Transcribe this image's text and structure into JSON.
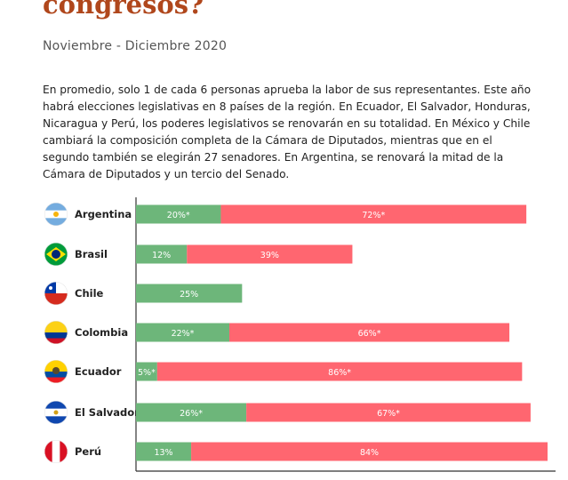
{
  "header": {
    "title": "congresos?",
    "subtitle": "Noviembre - Diciembre 2020",
    "paragraph": "En promedio, solo 1 de cada 6 personas aprueba la labor de sus representantes.  Este año habrá elecciones legislativas en 8 países de la región. En Ecuador, El Salvador, Honduras, Nicaragua y Perú, los poderes legislativos se renovarán en su totalidad. En México y Chile cambiará la composición completa de la Cámara de Diputados, mientras que en el segundo también se elegirán 27 senadores. En Argentina, se renovará la mitad de la Cámara de Diputados y un tercio del Senado."
  },
  "chart_data": {
    "type": "bar",
    "orientation": "horizontal",
    "stacked": true,
    "categories": [
      "Argentina",
      "Brasil",
      "Chile",
      "Colombia",
      "Ecuador",
      "El Salvador",
      "Perú"
    ],
    "series": [
      {
        "values": [
          20,
          12,
          25,
          22,
          5,
          26,
          13
        ],
        "labels": [
          "20%*",
          "12%",
          "25%",
          "22%*",
          "5%*",
          "26%*",
          "13%"
        ],
        "color": "#6db67a"
      },
      {
        "values": [
          72,
          39,
          null,
          66,
          86,
          67,
          84
        ],
        "labels": [
          "72%*",
          "39%",
          "",
          "66%*",
          "86%*",
          "67%*",
          "84%"
        ],
        "color": "#ff6670"
      }
    ],
    "xlim": [
      0,
      97
    ],
    "grid": false,
    "axis_color": "#333333",
    "icons": [
      "flag-argentina-icon",
      "flag-brasil-icon",
      "flag-chile-icon",
      "flag-colombia-icon",
      "flag-ecuador-icon",
      "flag-elsalvador-icon",
      "flag-peru-icon"
    ]
  }
}
